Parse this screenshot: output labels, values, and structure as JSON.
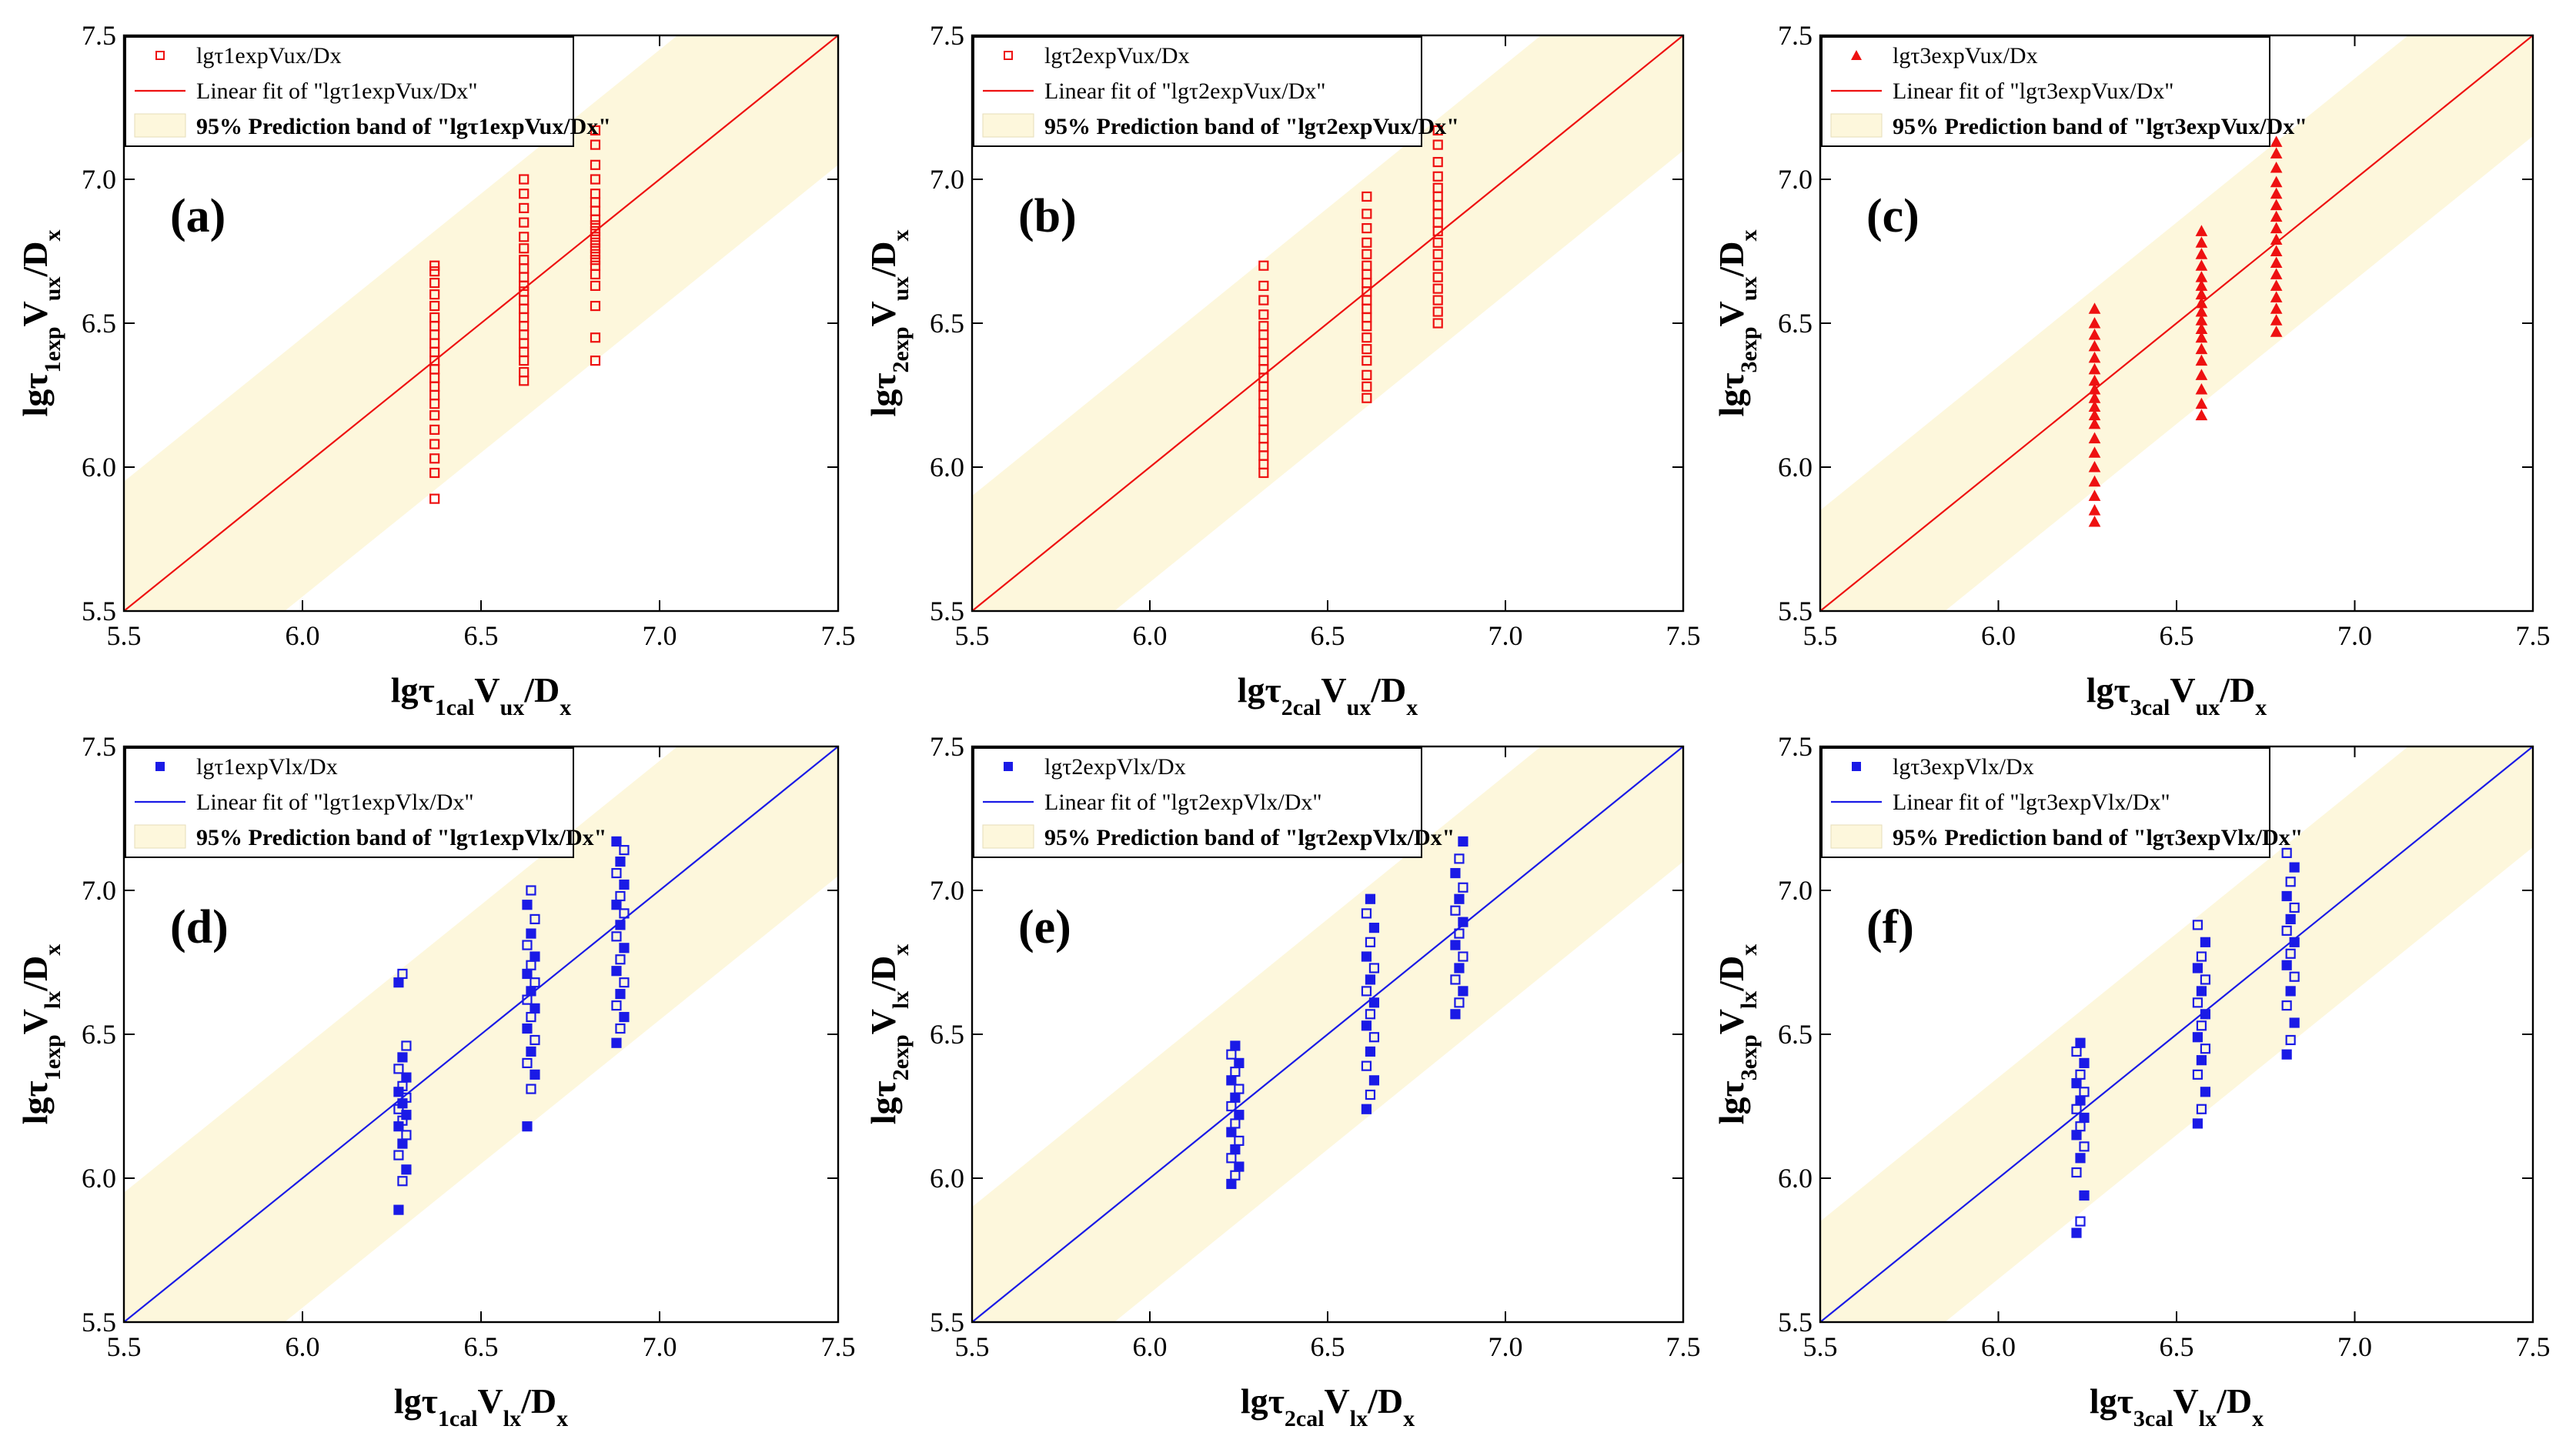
{
  "figure": {
    "panel_letters": [
      "(a)",
      "(b)",
      "(c)",
      "(d)",
      "(e)",
      "(f)"
    ]
  },
  "colors": {
    "red": "#ee1111",
    "blue": "#1a1ae6",
    "band": "#fdf7dc",
    "frame": "#000000"
  },
  "legend": {
    "band_label": "95% Prediction band of \"lg",
    "fit_label": "Linear fit of \"lg"
  },
  "chart_data": [
    {
      "type": "scatter",
      "panel": "(a)",
      "color": "red",
      "marker": "square",
      "title": "",
      "xlabel": {
        "main": "lgτ",
        "sub1": "1cal",
        "main2": "V",
        "sub2": "ux",
        "main3": "/D",
        "sub3": "x"
      },
      "ylabel": {
        "main": "lgτ",
        "sub1": "1exp",
        "main2": "V",
        "sub2": "ux",
        "main3": "/D",
        "sub3": "x"
      },
      "legend": [
        "lgτ1expVux/Dx",
        "Linear fit of \"lgτ1expVux/Dx\"",
        "95% Prediction band of \"lgτ1expVux/Dx\""
      ],
      "xlim": [
        5.5,
        7.5
      ],
      "ylim": [
        5.5,
        7.5
      ],
      "xticks": [
        "5.5",
        "6.0",
        "6.5",
        "7.0",
        "7.5"
      ],
      "yticks": [
        "5.5",
        "6.0",
        "6.5",
        "7.0",
        "7.5"
      ],
      "fit": {
        "slope": 1.0,
        "intercept": 0.0
      },
      "band_halfwidth": 0.45,
      "series": [
        {
          "x": 6.37,
          "y": [
            5.89,
            5.98,
            6.03,
            6.08,
            6.13,
            6.18,
            6.22,
            6.25,
            6.28,
            6.31,
            6.34,
            6.37,
            6.4,
            6.43,
            6.46,
            6.49,
            6.52,
            6.56,
            6.6,
            6.64,
            6.68,
            6.7
          ]
        },
        {
          "x": 6.62,
          "y": [
            6.3,
            6.33,
            6.37,
            6.4,
            6.43,
            6.46,
            6.49,
            6.52,
            6.55,
            6.58,
            6.61,
            6.63,
            6.66,
            6.69,
            6.72,
            6.76,
            6.8,
            6.85,
            6.9,
            6.95,
            7.0
          ]
        },
        {
          "x": 6.82,
          "y": [
            6.37,
            6.45,
            6.56,
            6.63,
            6.67,
            6.7,
            6.72,
            6.74,
            6.76,
            6.78,
            6.8,
            6.82,
            6.84,
            6.86,
            6.89,
            6.92,
            6.95,
            7.0,
            7.05,
            7.12,
            7.17
          ]
        }
      ]
    },
    {
      "type": "scatter",
      "panel": "(b)",
      "color": "red",
      "marker": "square",
      "title": "",
      "xlabel": {
        "main": "lgτ",
        "sub1": "2cal",
        "main2": "V",
        "sub2": "ux",
        "main3": "/D",
        "sub3": "x"
      },
      "ylabel": {
        "main": "lgτ",
        "sub1": "2exp",
        "main2": "V",
        "sub2": "ux",
        "main3": "/D",
        "sub3": "x"
      },
      "legend": [
        "lgτ2expVux/Dx",
        "Linear fit of \"lgτ2expVux/Dx\"",
        "95% Prediction band of \"lgτ2expVux/Dx\""
      ],
      "xlim": [
        5.5,
        7.5
      ],
      "ylim": [
        5.5,
        7.5
      ],
      "xticks": [
        "5.5",
        "6.0",
        "6.5",
        "7.0",
        "7.5"
      ],
      "yticks": [
        "5.5",
        "6.0",
        "6.5",
        "7.0",
        "7.5"
      ],
      "fit": {
        "slope": 1.0,
        "intercept": 0.0
      },
      "band_halfwidth": 0.4,
      "series": [
        {
          "x": 6.32,
          "y": [
            5.98,
            6.01,
            6.04,
            6.07,
            6.1,
            6.13,
            6.16,
            6.19,
            6.22,
            6.25,
            6.28,
            6.31,
            6.34,
            6.37,
            6.4,
            6.43,
            6.46,
            6.49,
            6.53,
            6.58,
            6.63,
            6.7
          ]
        },
        {
          "x": 6.61,
          "y": [
            6.24,
            6.28,
            6.32,
            6.37,
            6.41,
            6.45,
            6.49,
            6.52,
            6.55,
            6.58,
            6.61,
            6.64,
            6.67,
            6.7,
            6.74,
            6.78,
            6.83,
            6.88,
            6.94
          ]
        },
        {
          "x": 6.81,
          "y": [
            6.5,
            6.54,
            6.58,
            6.62,
            6.66,
            6.7,
            6.74,
            6.78,
            6.82,
            6.85,
            6.88,
            6.91,
            6.94,
            6.97,
            7.01,
            7.06,
            7.12,
            7.17
          ]
        }
      ]
    },
    {
      "type": "scatter",
      "panel": "(c)",
      "color": "red",
      "marker": "triangle",
      "title": "",
      "xlabel": {
        "main": "lgτ",
        "sub1": "3cal",
        "main2": "V",
        "sub2": "ux",
        "main3": "/D",
        "sub3": "x"
      },
      "ylabel": {
        "main": "lgτ",
        "sub1": "3exp",
        "main2": "V",
        "sub2": "ux",
        "main3": "/D",
        "sub3": "x"
      },
      "legend": [
        "lgτ3expVux/Dx",
        "Linear fit of \"lgτ3expVux/Dx\"",
        "95% Prediction band of \"lgτ3expVux/Dx\""
      ],
      "xlim": [
        5.5,
        7.5
      ],
      "ylim": [
        5.5,
        7.5
      ],
      "xticks": [
        "5.5",
        "6.0",
        "6.5",
        "7.0",
        "7.5"
      ],
      "yticks": [
        "5.5",
        "6.0",
        "6.5",
        "7.0",
        "7.5"
      ],
      "fit": {
        "slope": 1.0,
        "intercept": 0.0
      },
      "band_halfwidth": 0.35,
      "series": [
        {
          "x": 6.27,
          "y": [
            5.81,
            5.85,
            5.9,
            5.95,
            6.0,
            6.05,
            6.1,
            6.15,
            6.18,
            6.21,
            6.24,
            6.27,
            6.3,
            6.34,
            6.38,
            6.42,
            6.46,
            6.5,
            6.55
          ]
        },
        {
          "x": 6.57,
          "y": [
            6.18,
            6.22,
            6.27,
            6.32,
            6.37,
            6.41,
            6.45,
            6.48,
            6.51,
            6.54,
            6.57,
            6.6,
            6.63,
            6.66,
            6.7,
            6.74,
            6.78,
            6.82
          ]
        },
        {
          "x": 6.78,
          "y": [
            6.47,
            6.51,
            6.55,
            6.59,
            6.63,
            6.67,
            6.71,
            6.75,
            6.79,
            6.83,
            6.87,
            6.91,
            6.95,
            6.99,
            7.04,
            7.09,
            7.13
          ]
        }
      ]
    },
    {
      "type": "scatter",
      "panel": "(d)",
      "color": "blue",
      "marker": "square",
      "title": "",
      "xlabel": {
        "main": "lgτ",
        "sub1": "1cal",
        "main2": "V",
        "sub2": "lx",
        "main3": "/D",
        "sub3": "x"
      },
      "ylabel": {
        "main": "lgτ",
        "sub1": "1exp",
        "main2": "V",
        "sub2": "lx",
        "main3": "/D",
        "sub3": "x"
      },
      "legend": [
        "lgτ1expVlx/Dx",
        "Linear fit of \"lgτ1expVlx/Dx\"",
        "95% Prediction band of \"lgτ1expVlx/Dx\""
      ],
      "xlim": [
        5.5,
        7.5
      ],
      "ylim": [
        5.5,
        7.5
      ],
      "xticks": [
        "5.5",
        "6.0",
        "6.5",
        "7.0",
        "7.5"
      ],
      "yticks": [
        "5.5",
        "6.0",
        "6.5",
        "7.0",
        "7.5"
      ],
      "fit": {
        "slope": 1.0,
        "intercept": 0.0
      },
      "band_halfwidth": 0.45,
      "series": [
        {
          "x": 6.28,
          "y": [
            5.89,
            5.99,
            6.03,
            6.08,
            6.12,
            6.15,
            6.18,
            6.2,
            6.22,
            6.24,
            6.26,
            6.28,
            6.3,
            6.32,
            6.35,
            6.38,
            6.42,
            6.46,
            6.68,
            6.71
          ]
        },
        {
          "x": 6.64,
          "y": [
            6.18,
            6.31,
            6.36,
            6.4,
            6.44,
            6.48,
            6.52,
            6.56,
            6.59,
            6.62,
            6.65,
            6.68,
            6.71,
            6.74,
            6.77,
            6.81,
            6.85,
            6.9,
            6.95,
            7.0
          ]
        },
        {
          "x": 6.89,
          "y": [
            6.47,
            6.52,
            6.56,
            6.6,
            6.64,
            6.68,
            6.72,
            6.76,
            6.8,
            6.84,
            6.88,
            6.92,
            6.95,
            6.98,
            7.02,
            7.06,
            7.1,
            7.14,
            7.17
          ]
        }
      ]
    },
    {
      "type": "scatter",
      "panel": "(e)",
      "color": "blue",
      "marker": "square",
      "title": "",
      "xlabel": {
        "main": "lgτ",
        "sub1": "2cal",
        "main2": "V",
        "sub2": "lx",
        "main3": "/D",
        "sub3": "x"
      },
      "ylabel": {
        "main": "lgτ",
        "sub1": "2exp",
        "main2": "V",
        "sub2": "lx",
        "main3": "/D",
        "sub3": "x"
      },
      "legend": [
        "lgτ2expVlx/Dx",
        "Linear fit of \"lgτ2expVlx/Dx\"",
        "95% Prediction band of \"lgτ2expVlx/Dx\""
      ],
      "xlim": [
        5.5,
        7.5
      ],
      "ylim": [
        5.5,
        7.5
      ],
      "xticks": [
        "5.5",
        "6.0",
        "6.5",
        "7.0",
        "7.5"
      ],
      "yticks": [
        "5.5",
        "6.0",
        "6.5",
        "7.0",
        "7.5"
      ],
      "fit": {
        "slope": 1.0,
        "intercept": 0.0
      },
      "band_halfwidth": 0.4,
      "series": [
        {
          "x": 6.24,
          "y": [
            5.98,
            6.01,
            6.04,
            6.07,
            6.1,
            6.13,
            6.16,
            6.19,
            6.22,
            6.25,
            6.28,
            6.31,
            6.34,
            6.37,
            6.4,
            6.43,
            6.46
          ]
        },
        {
          "x": 6.62,
          "y": [
            6.24,
            6.29,
            6.34,
            6.39,
            6.44,
            6.49,
            6.53,
            6.57,
            6.61,
            6.65,
            6.69,
            6.73,
            6.77,
            6.82,
            6.87,
            6.92,
            6.97
          ]
        },
        {
          "x": 6.87,
          "y": [
            6.57,
            6.61,
            6.65,
            6.69,
            6.73,
            6.77,
            6.81,
            6.85,
            6.89,
            6.93,
            6.97,
            7.01,
            7.06,
            7.11,
            7.17
          ]
        }
      ]
    },
    {
      "type": "scatter",
      "panel": "(f)",
      "color": "blue",
      "marker": "square",
      "title": "",
      "xlabel": {
        "main": "lgτ",
        "sub1": "3cal",
        "main2": "V",
        "sub2": "lx",
        "main3": "/D",
        "sub3": "x"
      },
      "ylabel": {
        "main": "lgτ",
        "sub1": "3exp",
        "main2": "V",
        "sub2": "lx",
        "main3": "/D",
        "sub3": "x"
      },
      "legend": [
        "lgτ3expVlx/Dx",
        "Linear fit of \"lgτ3expVlx/Dx\"",
        "95% Prediction band of \"lgτ3expVlx/Dx\""
      ],
      "xlim": [
        5.5,
        7.5
      ],
      "ylim": [
        5.5,
        7.5
      ],
      "xticks": [
        "5.5",
        "6.0",
        "6.5",
        "7.0",
        "7.5"
      ],
      "yticks": [
        "5.5",
        "6.0",
        "6.5",
        "7.0",
        "7.5"
      ],
      "fit": {
        "slope": 1.0,
        "intercept": 0.0
      },
      "band_halfwidth": 0.35,
      "series": [
        {
          "x": 6.23,
          "y": [
            5.81,
            5.85,
            5.94,
            6.02,
            6.07,
            6.11,
            6.15,
            6.18,
            6.21,
            6.24,
            6.27,
            6.3,
            6.33,
            6.36,
            6.4,
            6.44,
            6.47
          ]
        },
        {
          "x": 6.57,
          "y": [
            6.19,
            6.24,
            6.3,
            6.36,
            6.41,
            6.45,
            6.49,
            6.53,
            6.57,
            6.61,
            6.65,
            6.69,
            6.73,
            6.77,
            6.82,
            6.88
          ]
        },
        {
          "x": 6.82,
          "y": [
            6.43,
            6.48,
            6.54,
            6.6,
            6.65,
            6.7,
            6.74,
            6.78,
            6.82,
            6.86,
            6.9,
            6.94,
            6.98,
            7.03,
            7.08,
            7.13
          ]
        }
      ]
    }
  ]
}
